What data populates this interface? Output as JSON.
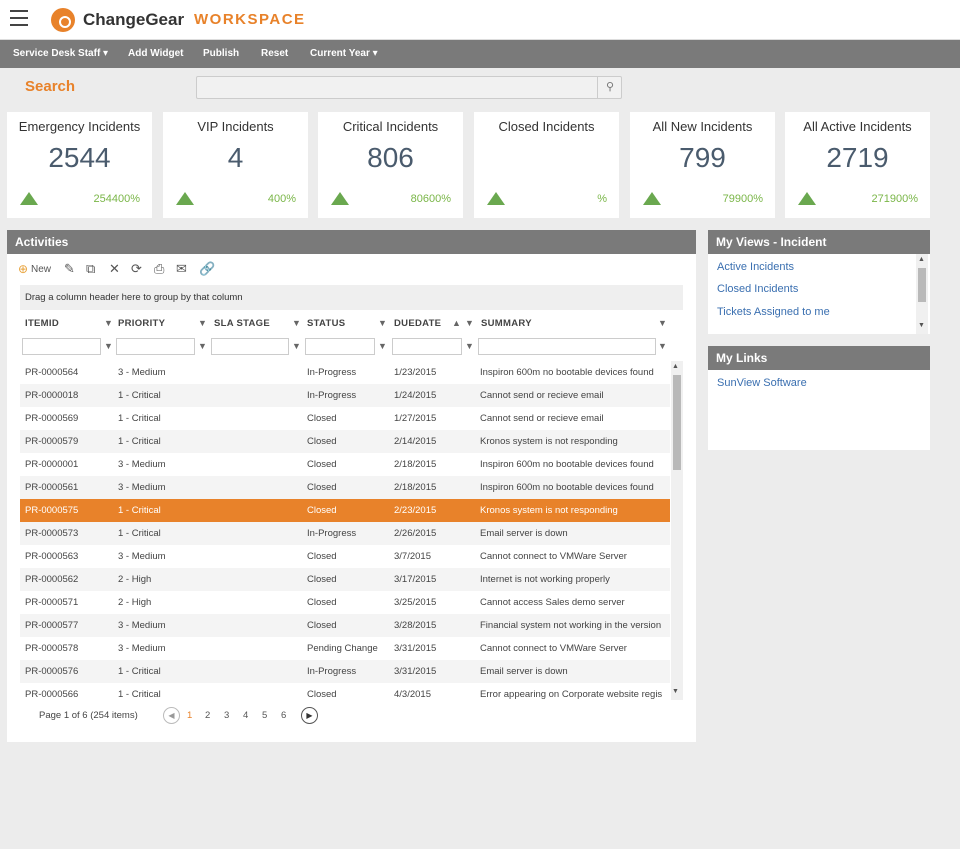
{
  "header": {
    "brand": "ChangeGear",
    "section": "WORKSPACE"
  },
  "menu": {
    "items": [
      "Service Desk Staff ▾",
      "Add Widget",
      "Publish",
      "Reset",
      "Current Year ▾"
    ]
  },
  "search": {
    "label": "Search",
    "value": "",
    "placeholder": "",
    "button_icon": "search-icon"
  },
  "cards": [
    {
      "title": "Emergency Incidents",
      "value": "2544",
      "percent": "254400%"
    },
    {
      "title": "VIP Incidents",
      "value": "4",
      "percent": "400%"
    },
    {
      "title": "Critical Incidents",
      "value": "806",
      "percent": "80600%"
    },
    {
      "title": "Closed Incidents",
      "value": "",
      "percent": "%"
    },
    {
      "title": "All New Incidents",
      "value": "799",
      "percent": "79900%"
    },
    {
      "title": "All Active Incidents",
      "value": "2719",
      "percent": "271900%"
    }
  ],
  "activities": {
    "title": "Activities",
    "new_label": "New",
    "toolbar_icons": [
      "edit-icon",
      "copy-icon",
      "delete-icon",
      "refresh-icon",
      "print-icon",
      "email-icon",
      "link-icon"
    ],
    "group_hint": "Drag a column header here to group by that column",
    "columns": [
      "ITEMID",
      "PRIORITY",
      "SLA STAGE",
      "STATUS",
      "DUEDATE",
      "SUMMARY"
    ],
    "rows": [
      [
        "PR-0000564",
        "3 - Medium",
        "",
        "In-Progress",
        "1/23/2015",
        "Inspiron 600m no bootable devices found"
      ],
      [
        "PR-0000018",
        "1 - Critical",
        "",
        "In-Progress",
        "1/24/2015",
        "Cannot send or recieve email"
      ],
      [
        "PR-0000569",
        "1 - Critical",
        "",
        "Closed",
        "1/27/2015",
        "Cannot send or recieve email"
      ],
      [
        "PR-0000579",
        "1 - Critical",
        "",
        "Closed",
        "2/14/2015",
        "Kronos system is not responding"
      ],
      [
        "PR-0000001",
        "3 - Medium",
        "",
        "Closed",
        "2/18/2015",
        "Inspiron 600m no bootable devices found"
      ],
      [
        "PR-0000561",
        "3 - Medium",
        "",
        "Closed",
        "2/18/2015",
        "Inspiron 600m no bootable devices found"
      ],
      [
        "PR-0000575",
        "1 - Critical",
        "",
        "Closed",
        "2/23/2015",
        "Kronos system is not responding"
      ],
      [
        "PR-0000573",
        "1 - Critical",
        "",
        "In-Progress",
        "2/26/2015",
        "Email server is down"
      ],
      [
        "PR-0000563",
        "3 - Medium",
        "",
        "Closed",
        "3/7/2015",
        "Cannot connect to VMWare Server"
      ],
      [
        "PR-0000562",
        "2 - High",
        "",
        "Closed",
        "3/17/2015",
        "Internet is not working properly"
      ],
      [
        "PR-0000571",
        "2 - High",
        "",
        "Closed",
        "3/25/2015",
        "Cannot access Sales demo server"
      ],
      [
        "PR-0000577",
        "3 - Medium",
        "",
        "Closed",
        "3/28/2015",
        "Financial system not working in the version"
      ],
      [
        "PR-0000578",
        "3 - Medium",
        "",
        "Pending Change",
        "3/31/2015",
        "Cannot connect to VMWare Server"
      ],
      [
        "PR-0000576",
        "1 - Critical",
        "",
        "In-Progress",
        "3/31/2015",
        "Email server is down"
      ],
      [
        "PR-0000566",
        "1 - Critical",
        "",
        "Closed",
        "4/3/2015",
        "Error appearing on Corporate website regis"
      ]
    ],
    "selected_row": 6,
    "pager": {
      "info": "Page 1 of 6 (254 items)",
      "pages": [
        "1",
        "2",
        "3",
        "4",
        "5",
        "6"
      ],
      "current": "1"
    }
  },
  "my_views": {
    "title": "My Views - Incident",
    "items": [
      "Active Incidents",
      "Closed Incidents",
      "Tickets Assigned to me"
    ]
  },
  "my_links": {
    "title": "My Links",
    "items": [
      "SunView Software"
    ]
  },
  "colors": {
    "accent": "#e8822a",
    "panel_header": "#7a7a7a",
    "up_arrow": "#6aa84f",
    "link": "#3a6fb0"
  }
}
